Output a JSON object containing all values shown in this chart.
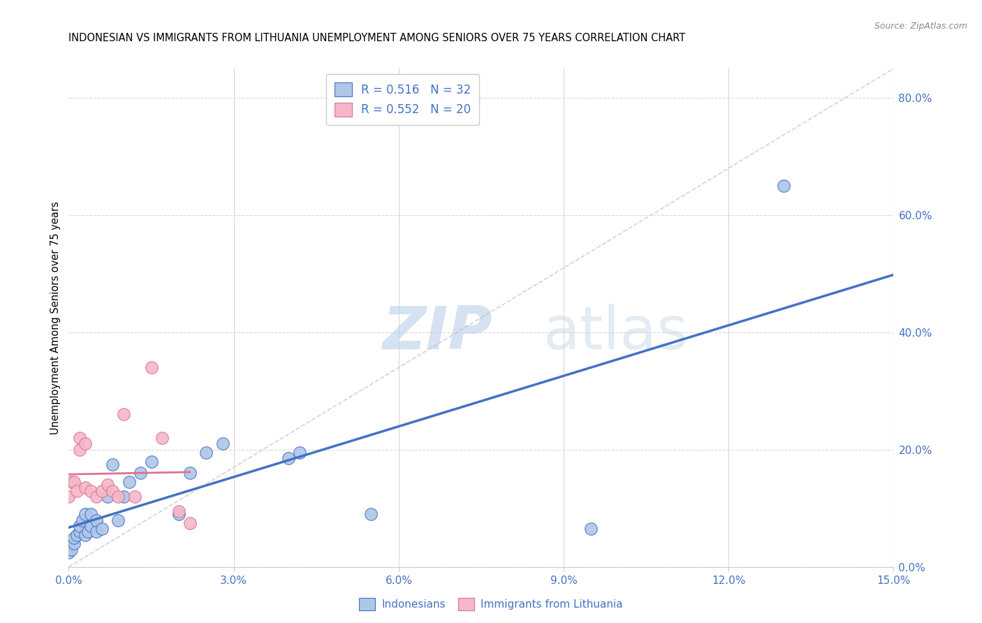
{
  "title": "INDONESIAN VS IMMIGRANTS FROM LITHUANIA UNEMPLOYMENT AMONG SENIORS OVER 75 YEARS CORRELATION CHART",
  "source": "Source: ZipAtlas.com",
  "ylabel": "Unemployment Among Seniors over 75 years",
  "xlim": [
    0.0,
    0.15
  ],
  "ylim": [
    0.0,
    0.85
  ],
  "xticks": [
    0.0,
    0.03,
    0.06,
    0.09,
    0.12,
    0.15
  ],
  "yticks_right": [
    0.0,
    0.2,
    0.4,
    0.6,
    0.8
  ],
  "indonesian_x": [
    0.0,
    0.0005,
    0.001,
    0.001,
    0.0015,
    0.002,
    0.002,
    0.0025,
    0.003,
    0.003,
    0.0035,
    0.004,
    0.004,
    0.005,
    0.005,
    0.006,
    0.007,
    0.008,
    0.009,
    0.01,
    0.011,
    0.013,
    0.015,
    0.02,
    0.022,
    0.025,
    0.028,
    0.04,
    0.042,
    0.055,
    0.095,
    0.13
  ],
  "indonesian_y": [
    0.025,
    0.03,
    0.04,
    0.05,
    0.055,
    0.06,
    0.07,
    0.08,
    0.055,
    0.09,
    0.06,
    0.07,
    0.09,
    0.06,
    0.08,
    0.065,
    0.12,
    0.175,
    0.08,
    0.12,
    0.145,
    0.16,
    0.18,
    0.09,
    0.16,
    0.195,
    0.21,
    0.185,
    0.195,
    0.09,
    0.065,
    0.65
  ],
  "lithuania_x": [
    0.0,
    0.0005,
    0.001,
    0.0015,
    0.002,
    0.002,
    0.003,
    0.003,
    0.004,
    0.005,
    0.006,
    0.007,
    0.008,
    0.009,
    0.01,
    0.012,
    0.015,
    0.017,
    0.02,
    0.022
  ],
  "lithuania_y": [
    0.12,
    0.145,
    0.145,
    0.13,
    0.2,
    0.22,
    0.21,
    0.135,
    0.13,
    0.12,
    0.13,
    0.14,
    0.13,
    0.12,
    0.26,
    0.12,
    0.34,
    0.22,
    0.095,
    0.075
  ],
  "R_indonesian": 0.516,
  "N_indonesian": 32,
  "R_lithuania": 0.552,
  "N_lithuania": 20,
  "color_indonesian": "#aec6e8",
  "color_indonesia_line": "#4472c4",
  "color_lithuania": "#f4b8c8",
  "color_lithuania_line": "#e07090",
  "color_diagonal": "#c0c0c0",
  "color_legend_text_blue": "#4472c4",
  "color_axis_labels": "#4472c4",
  "watermark_zip": "ZIP",
  "watermark_atlas": "atlas",
  "background_color": "#ffffff"
}
